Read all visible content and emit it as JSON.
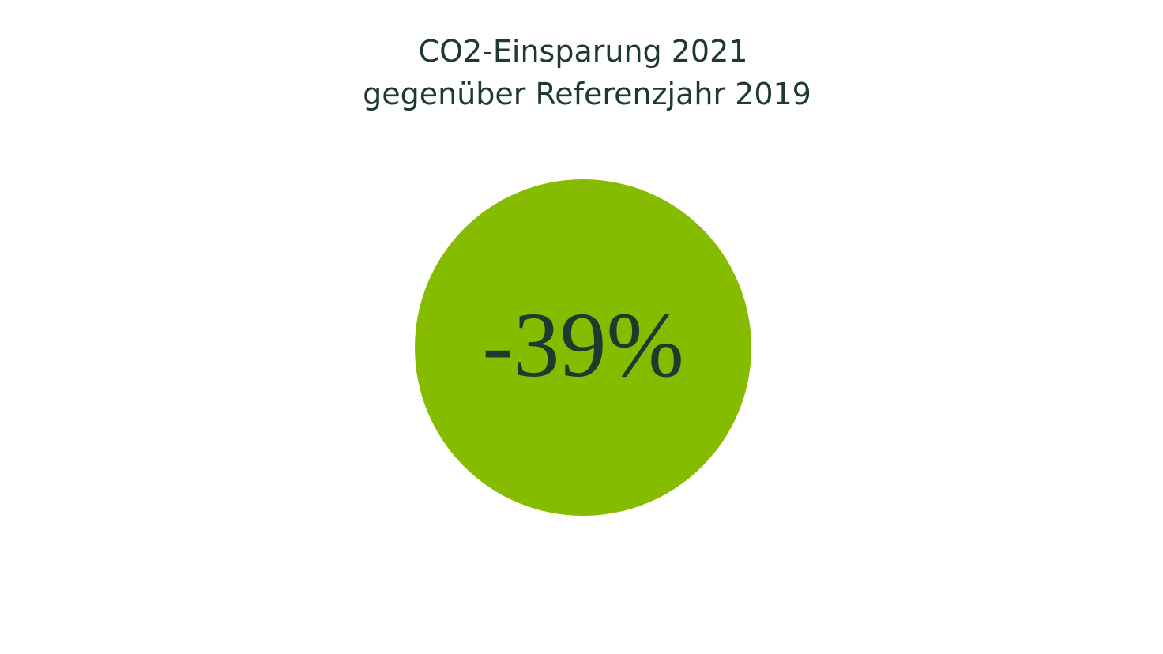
{
  "header": {
    "title_lines": [
      "CO2-Einsparung 2021",
      "gegenüber Referenzjahr 2019"
    ]
  },
  "highlight": {
    "label": "-39%"
  }
}
